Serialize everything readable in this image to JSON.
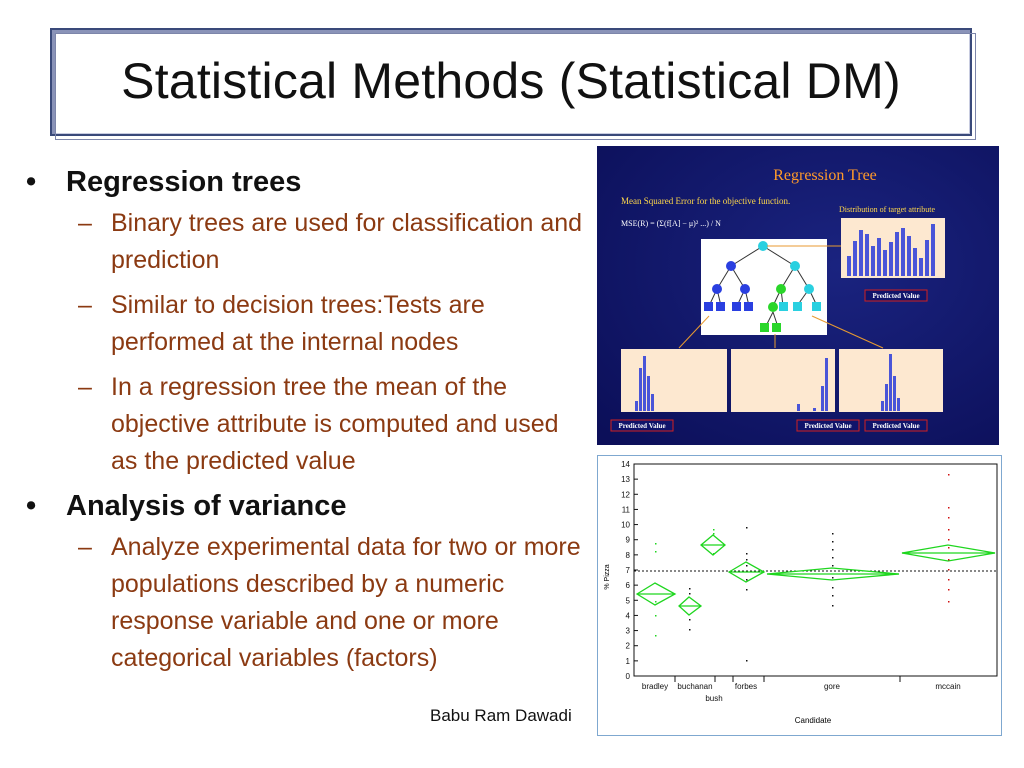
{
  "slide": {
    "title": "Statistical Methods (Statistical DM)",
    "footer": "Babu Ram Dawadi"
  },
  "bullets": [
    {
      "heading": "Regression trees",
      "items": [
        "Binary trees are used for classification and prediction",
        "Similar to decision trees:Tests are performed at the internal nodes",
        "In a regression tree the mean of the objective attribute is computed and used as the predicted value"
      ]
    },
    {
      "heading": "Analysis of variance",
      "items": [
        "Analyze experimental data for two or more populations described by a numeric response variable and one or more categorical variables (factors)"
      ]
    }
  ],
  "regression_tree_figure": {
    "title": "Regression Tree",
    "mse_caption": "Mean Squared Error for the objective function.",
    "target_caption": "Distribution of target attribute",
    "predicted_label": "Predicted Value",
    "colors": {
      "background": "#10146a",
      "node_blue": "#2a3fe0",
      "node_cyan": "#2ad0e0",
      "node_green": "#2ad62a",
      "bar": "#4a55d8"
    }
  },
  "anova_figure": {
    "y_axis_label": "% Pizza",
    "x_axis_label": "Candidate",
    "candidates": [
      "bradley",
      "buchanan",
      "bush",
      "forbes",
      "gore",
      "mccain"
    ],
    "y_ticks": [
      "14",
      "13",
      "12",
      "11",
      "10",
      "9",
      "8",
      "7",
      "6",
      "5",
      "4",
      "3",
      "2",
      "1",
      "0"
    ],
    "colors": {
      "diamond": "#1fd61f",
      "mccain_points": "#d01010",
      "points": "#111111"
    }
  }
}
